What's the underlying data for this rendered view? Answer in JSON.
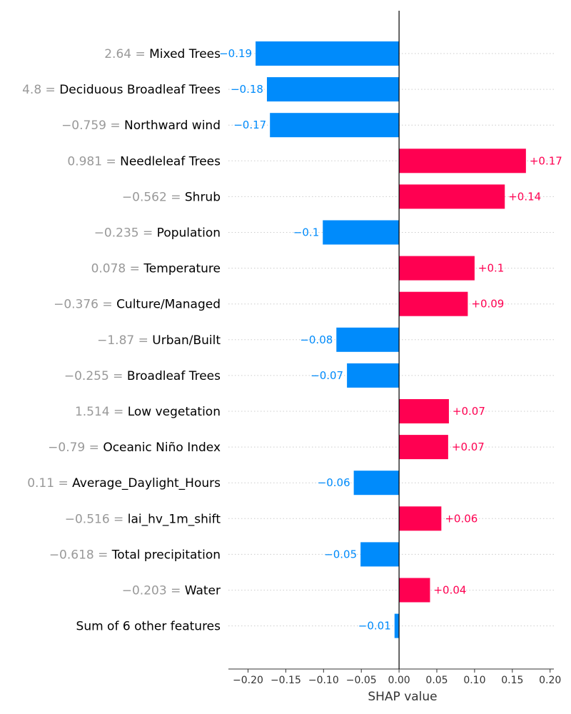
{
  "chart_data": {
    "type": "bar",
    "orientation": "horizontal",
    "xlabel": "SHAP value",
    "xlim": [
      -0.226,
      0.205
    ],
    "xticks": [
      "−0.20",
      "−0.15",
      "−0.10",
      "−0.05",
      "0.00",
      "0.05",
      "0.10",
      "0.15",
      "0.20"
    ],
    "xtick_values": [
      -0.2,
      -0.15,
      -0.1,
      -0.05,
      0.0,
      0.05,
      0.1,
      0.15,
      0.2
    ],
    "grid": "dotted horizontal lines",
    "colors": {
      "positive": "#ff0051",
      "negative": "#008bfb",
      "feature_value": "#999999"
    },
    "features": [
      {
        "value": "2.64",
        "name": "Mixed Trees",
        "shap": -0.19,
        "label": "−0.19"
      },
      {
        "value": "4.8",
        "name": "Deciduous Broadleaf Trees",
        "shap": -0.175,
        "label": "−0.18"
      },
      {
        "value": "−0.759",
        "name": "Northward wind",
        "shap": -0.171,
        "label": "−0.17"
      },
      {
        "value": "0.981",
        "name": "Needleleaf Trees",
        "shap": 0.168,
        "label": "+0.17"
      },
      {
        "value": "−0.562",
        "name": "Shrub",
        "shap": 0.14,
        "label": "+0.14"
      },
      {
        "value": "−0.235",
        "name": "Population",
        "shap": -0.101,
        "label": "−0.1"
      },
      {
        "value": "0.078",
        "name": "Temperature",
        "shap": 0.1,
        "label": "+0.1"
      },
      {
        "value": "−0.376",
        "name": "Culture/Managed",
        "shap": 0.091,
        "label": "+0.09"
      },
      {
        "value": "−1.87",
        "name": "Urban/Built",
        "shap": -0.083,
        "label": "−0.08"
      },
      {
        "value": "−0.255",
        "name": "Broadleaf Trees",
        "shap": -0.069,
        "label": "−0.07"
      },
      {
        "value": "1.514",
        "name": "Low vegetation",
        "shap": 0.066,
        "label": "+0.07"
      },
      {
        "value": "−0.79",
        "name": "Oceanic Niño Index",
        "shap": 0.065,
        "label": "+0.07"
      },
      {
        "value": "0.11",
        "name": "Average_Daylight_Hours",
        "shap": -0.06,
        "label": "−0.06"
      },
      {
        "value": "−0.516",
        "name": "lai_hv_1m_shift",
        "shap": 0.056,
        "label": "+0.06"
      },
      {
        "value": "−0.618",
        "name": "Total precipitation",
        "shap": -0.051,
        "label": "−0.05"
      },
      {
        "value": "−0.203",
        "name": "Water",
        "shap": 0.041,
        "label": "+0.04"
      },
      {
        "value": "",
        "name": "Sum of 6 other features",
        "shap": -0.006,
        "label": "−0.01"
      }
    ]
  }
}
